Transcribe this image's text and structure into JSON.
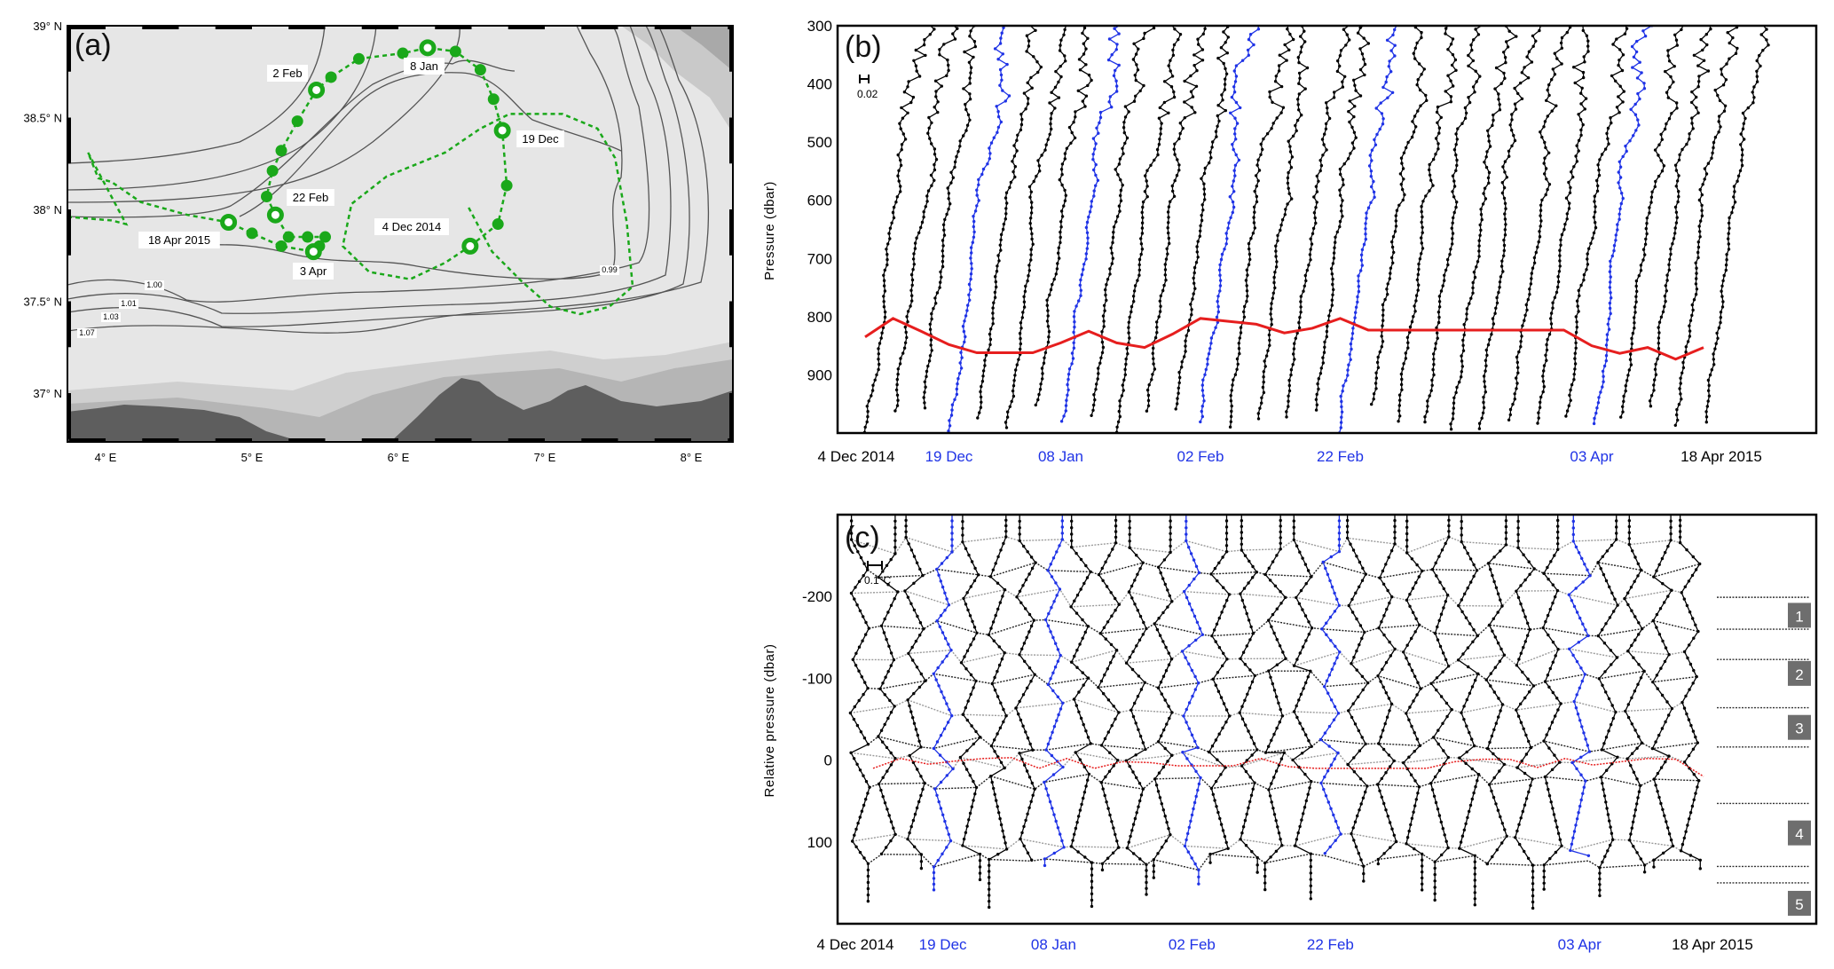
{
  "chart_data": [
    {
      "type": "map",
      "panel_label": "(a)",
      "xticks": [
        "4° E",
        "5° E",
        "6° E",
        "7° E",
        "8° E"
      ],
      "xtick_values": [
        4,
        5,
        6,
        7,
        8
      ],
      "yticks": [
        "37° N",
        "37.5° N",
        "38° N",
        "38.5° N",
        "39° N"
      ],
      "ytick_values": [
        37,
        37.5,
        38,
        38.5,
        39
      ],
      "xlim": [
        3.74,
        8.28
      ],
      "ylim": [
        36.73,
        39
      ],
      "track_color": "#1aa81a",
      "float_track": {
        "lon": [
          6.49,
          6.68,
          6.74,
          6.71,
          6.65,
          6.56,
          6.39,
          6.2,
          6.03,
          5.73,
          5.54,
          5.44,
          5.31,
          5.2,
          5.14,
          5.1,
          5.16,
          5.25,
          5.38,
          5.5,
          5.46,
          5.42,
          5.2,
          5.0,
          4.84
        ],
        "lat": [
          37.8,
          37.92,
          38.13,
          38.43,
          38.6,
          38.76,
          38.86,
          38.88,
          38.85,
          38.82,
          38.72,
          38.65,
          38.48,
          38.32,
          38.21,
          38.07,
          37.97,
          37.85,
          37.85,
          37.85,
          37.8,
          37.77,
          37.8,
          37.87,
          37.93
        ],
        "ring_markers": [
          0,
          3,
          7,
          11,
          16,
          21,
          24
        ]
      },
      "dashed_tracks": [
        {
          "lon": [
            6.48,
            6.64,
            6.84,
            7.04,
            7.24,
            7.44,
            7.6,
            7.56,
            7.48,
            7.36,
            7.12,
            6.76,
            6.56,
            6.32,
            5.92,
            5.68,
            5.62,
            5.8,
            6.08,
            6.32,
            6.49
          ],
          "lat": [
            38.01,
            37.77,
            37.61,
            37.47,
            37.43,
            37.47,
            37.58,
            37.93,
            38.28,
            38.44,
            38.52,
            38.52,
            38.44,
            38.31,
            38.18,
            38.03,
            37.8,
            37.66,
            37.62,
            37.71,
            37.8
          ]
        },
        {
          "lon": [
            3.74,
            4.04,
            4.14,
            3.88,
            3.95,
            4.04,
            4.24,
            4.56,
            4.84
          ],
          "lat": [
            37.96,
            37.94,
            37.92,
            38.31,
            38.17,
            38.15,
            38.04,
            37.97,
            37.93
          ]
        }
      ],
      "date_labels": [
        "2 Feb",
        "8 Jan",
        "19 Dec",
        "22 Feb",
        "4 Dec 2014",
        "18 Apr 2015",
        "3 Apr"
      ],
      "contour_labels": [
        "1.00",
        "1.01",
        "1.03",
        "1.07",
        "0.99"
      ]
    },
    {
      "type": "line",
      "panel_label": "(b)",
      "ylabel": "Pressure (dbar)",
      "ylim": [
        300,
        1000
      ],
      "yticks": [
        300,
        400,
        500,
        600,
        700,
        800,
        900
      ],
      "scale_bar_label": "0.02",
      "n_profiles": 31,
      "highlight_color": "#1f33e6",
      "highlighted_profiles": [
        3,
        7,
        12,
        17,
        26
      ],
      "xticks": [
        {
          "label": "4 Dec 2014",
          "profile": 0,
          "highlight": false
        },
        {
          "label": "19 Dec",
          "profile": 3,
          "highlight": true
        },
        {
          "label": "08 Jan",
          "profile": 7,
          "highlight": true
        },
        {
          "label": "02 Feb",
          "profile": 12,
          "highlight": true
        },
        {
          "label": "22 Feb",
          "profile": 17,
          "highlight": true
        },
        {
          "label": "03 Apr",
          "profile": 26,
          "highlight": true
        },
        {
          "label": "18 Apr 2015",
          "profile": 30,
          "highlight": false
        }
      ],
      "reference_line": {
        "color": "#e61e1e",
        "pressure": [
          835,
          803,
          825,
          848,
          862,
          862,
          862,
          845,
          825,
          845,
          853,
          830,
          803,
          808,
          813,
          828,
          820,
          803,
          823,
          823,
          823,
          823,
          823,
          823,
          823,
          823,
          850,
          863,
          853,
          873,
          853
        ]
      }
    },
    {
      "type": "line",
      "panel_label": "(c)",
      "ylabel": "Relative pressure (dbar)",
      "ylim": [
        -300,
        200
      ],
      "yticks": [
        -200,
        -100,
        0,
        100
      ],
      "scale_bar_label": "0.1°C",
      "n_profiles": 31,
      "highlighted_profiles": [
        3,
        7,
        12,
        17,
        26
      ],
      "xticks": [
        {
          "label": "4 Dec 2014",
          "profile": 0,
          "highlight": false
        },
        {
          "label": "19 Dec",
          "profile": 3,
          "highlight": true
        },
        {
          "label": "08 Jan",
          "profile": 7,
          "highlight": true
        },
        {
          "label": "02 Feb",
          "profile": 12,
          "highlight": true
        },
        {
          "label": "22 Feb",
          "profile": 17,
          "highlight": true
        },
        {
          "label": "03 Apr",
          "profile": 26,
          "highlight": true
        },
        {
          "label": "18 Apr 2015",
          "profile": 30,
          "highlight": false
        }
      ],
      "reference_line": {
        "color": "#e61e1e",
        "relative_pressure": [
          10,
          -2,
          5,
          1,
          -2,
          -3,
          10,
          -2,
          10,
          2,
          3,
          7,
          7,
          7,
          -2,
          8,
          10,
          10,
          10,
          10,
          10,
          2,
          -1,
          -1,
          9,
          -2,
          6,
          2,
          -2,
          -1,
          20
        ]
      },
      "layer_boundaries": [
        -199,
        -160,
        -123,
        -64,
        -16,
        53,
        130,
        150
      ],
      "layers": [
        "1",
        "2",
        "3",
        "4",
        "5"
      ],
      "layer_centers": [
        -177,
        -106,
        -40,
        89,
        175
      ]
    }
  ]
}
